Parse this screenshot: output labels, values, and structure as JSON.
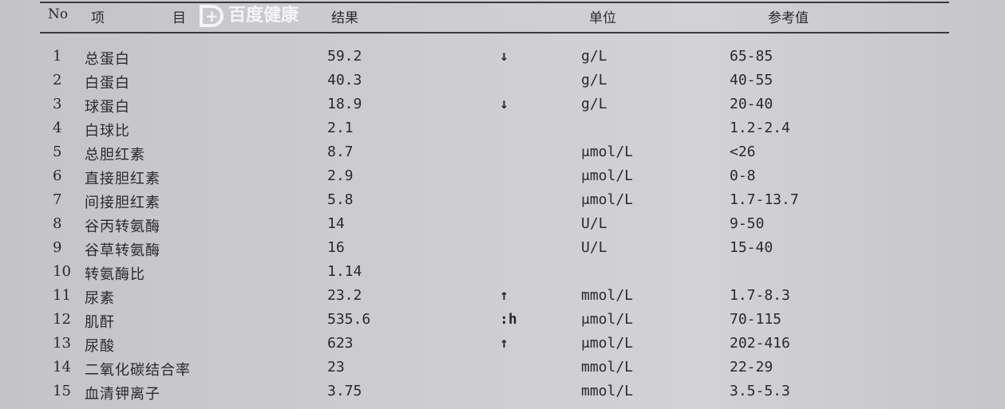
{
  "watermark": "百度健康",
  "header": {
    "no": "No",
    "item1": "项",
    "item2": "目",
    "result": "结果",
    "unit": "单位",
    "reference": "参考值"
  },
  "rows": [
    {
      "no": "1",
      "item": "总蛋白",
      "result": "59.2",
      "flag": "↓",
      "unit": "g/L",
      "ref": "65-85"
    },
    {
      "no": "2",
      "item": "白蛋白",
      "result": "40.3",
      "flag": "",
      "unit": "g/L",
      "ref": "40-55"
    },
    {
      "no": "3",
      "item": "球蛋白",
      "result": "18.9",
      "flag": "↓",
      "unit": "g/L",
      "ref": "20-40"
    },
    {
      "no": "4",
      "item": "白球比",
      "result": "2.1",
      "flag": "",
      "unit": "",
      "ref": "1.2-2.4"
    },
    {
      "no": "5",
      "item": "总胆红素",
      "result": "8.7",
      "flag": "",
      "unit": "μmol/L",
      "ref": "<26"
    },
    {
      "no": "6",
      "item": "直接胆红素",
      "result": "2.9",
      "flag": "",
      "unit": "μmol/L",
      "ref": "0-8"
    },
    {
      "no": "7",
      "item": "间接胆红素",
      "result": "5.8",
      "flag": "",
      "unit": "μmol/L",
      "ref": "1.7-13.7"
    },
    {
      "no": "8",
      "item": "谷丙转氨酶",
      "result": "14",
      "flag": "",
      "unit": "U/L",
      "ref": "9-50"
    },
    {
      "no": "9",
      "item": "谷草转氨酶",
      "result": "16",
      "flag": "",
      "unit": "U/L",
      "ref": "15-40"
    },
    {
      "no": "10",
      "item": "转氨酶比",
      "result": "1.14",
      "flag": "",
      "unit": "",
      "ref": ""
    },
    {
      "no": "11",
      "item": "尿素",
      "result": "23.2",
      "flag": "↑",
      "unit": "mmol/L",
      "ref": "1.7-8.3"
    },
    {
      "no": "12",
      "item": "肌酐",
      "result": "535.6",
      "flag": ":h",
      "unit": "μmol/L",
      "ref": "70-115"
    },
    {
      "no": "13",
      "item": "尿酸",
      "result": "623",
      "flag": "↑",
      "unit": "μmol/L",
      "ref": "202-416"
    },
    {
      "no": "14",
      "item": "二氧化碳结合率",
      "result": "23",
      "flag": "",
      "unit": "mmol/L",
      "ref": "22-29"
    },
    {
      "no": "15",
      "item": "血清钾离子",
      "result": "3.75",
      "flag": "",
      "unit": "mmol/L",
      "ref": "3.5-5.3"
    }
  ]
}
